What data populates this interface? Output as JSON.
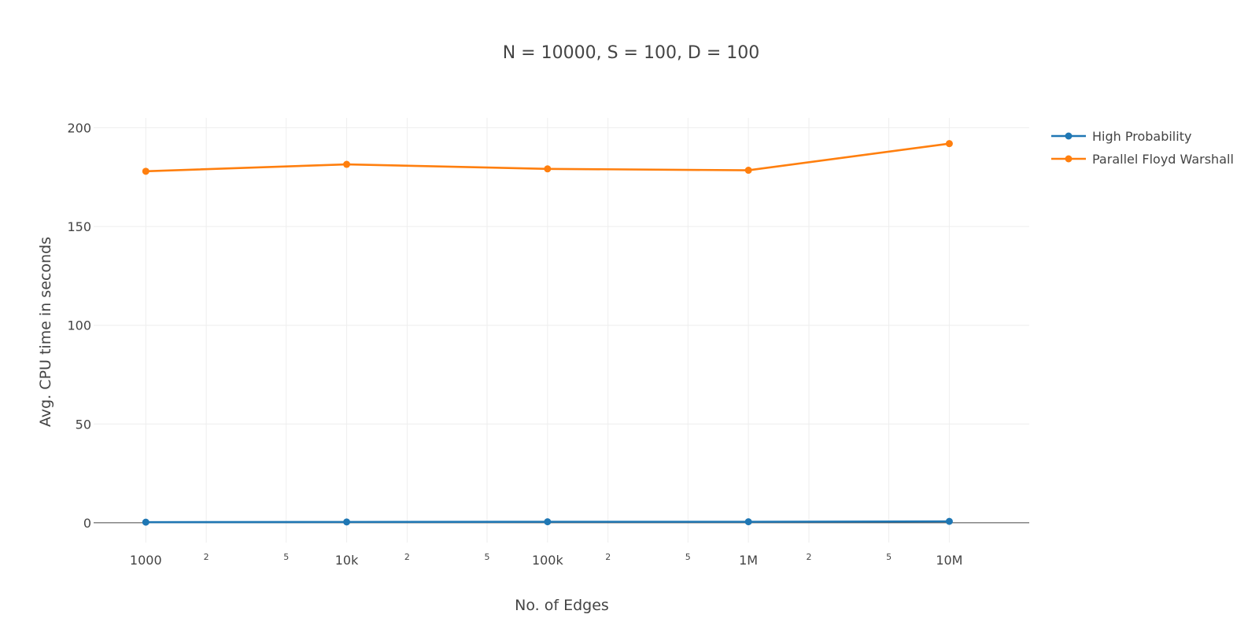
{
  "chart_data": {
    "type": "line",
    "title": "N = 10000, S = 100, D = 100",
    "xlabel": "No. of Edges",
    "ylabel": "Avg. CPU time in seconds",
    "x_scale": "log",
    "x": [
      1000,
      10000,
      100000,
      1000000,
      10000000
    ],
    "xlim": [
      550,
      25000000
    ],
    "ylim": [
      -10,
      205
    ],
    "x_major_ticks": [
      {
        "value": 1000,
        "label": "1000"
      },
      {
        "value": 10000,
        "label": "10k"
      },
      {
        "value": 100000,
        "label": "100k"
      },
      {
        "value": 1000000,
        "label": "1M"
      },
      {
        "value": 10000000,
        "label": "10M"
      }
    ],
    "x_minor_ticks": [
      {
        "value": 2000,
        "label": "2"
      },
      {
        "value": 5000,
        "label": "5"
      },
      {
        "value": 20000,
        "label": "2"
      },
      {
        "value": 50000,
        "label": "5"
      },
      {
        "value": 200000,
        "label": "2"
      },
      {
        "value": 500000,
        "label": "5"
      },
      {
        "value": 2000000,
        "label": "2"
      },
      {
        "value": 5000000,
        "label": "5"
      }
    ],
    "y_ticks": [
      {
        "value": 0,
        "label": "0"
      },
      {
        "value": 50,
        "label": "50"
      },
      {
        "value": 100,
        "label": "100"
      },
      {
        "value": 150,
        "label": "150"
      },
      {
        "value": 200,
        "label": "200"
      }
    ],
    "grid": true,
    "legend_position": "top-right",
    "series": [
      {
        "name": "High Probability",
        "color": "#1f77b4",
        "values": [
          0.3,
          0.4,
          0.5,
          0.5,
          0.7
        ]
      },
      {
        "name": "Parallel Floyd Warshall",
        "color": "#ff7f0e",
        "values": [
          178,
          181.5,
          179.2,
          178.5,
          192
        ]
      }
    ]
  }
}
